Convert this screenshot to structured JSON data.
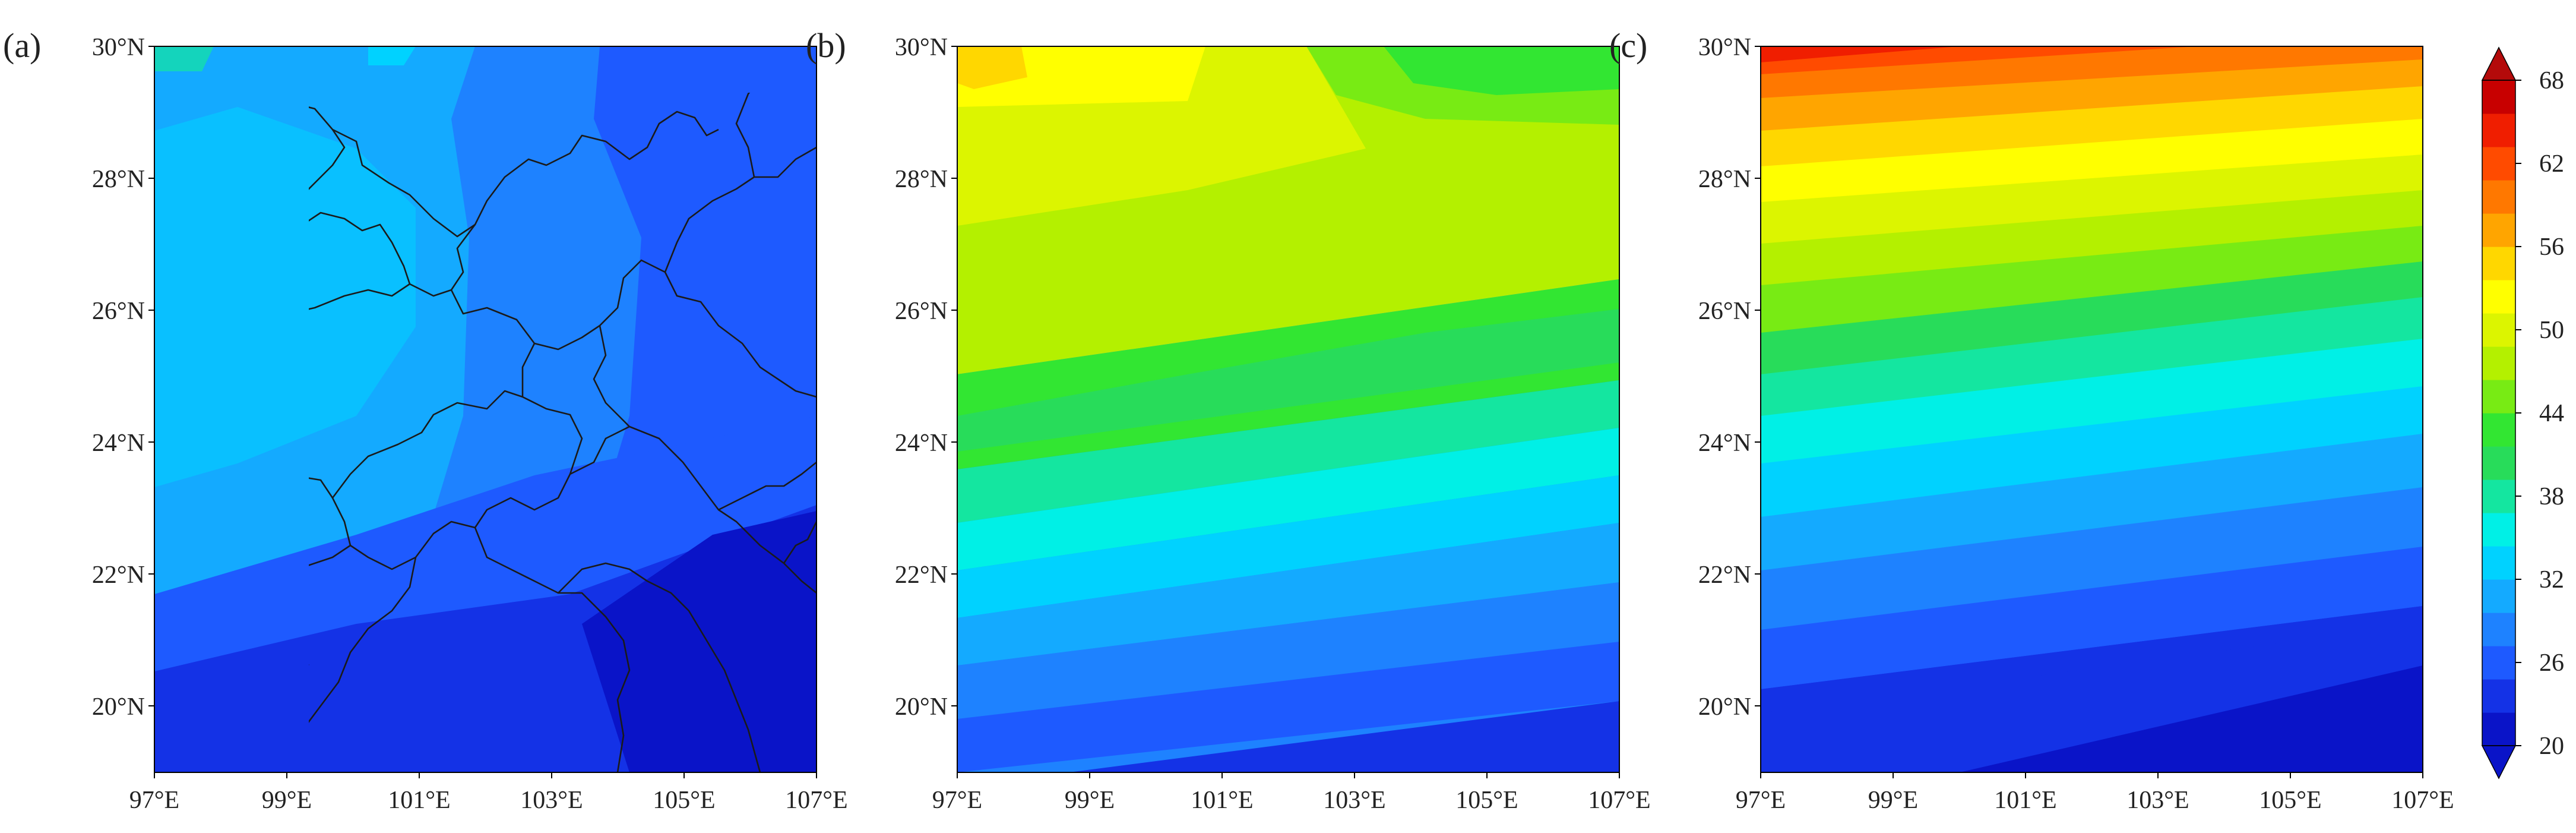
{
  "colorbar": {
    "ticks": [
      "20",
      "26",
      "32",
      "38",
      "44",
      "50",
      "56",
      "62",
      "68"
    ],
    "colors": [
      "#0a14c8",
      "#1432e6",
      "#1e5aff",
      "#1e82ff",
      "#14aaff",
      "#00d2ff",
      "#00f0e6",
      "#14e6a0",
      "#28dc5a",
      "#32e632",
      "#78eb14",
      "#b4f000",
      "#dcf500",
      "#ffff00",
      "#ffd700",
      "#ffa500",
      "#ff7800",
      "#ff4b00",
      "#f01e00",
      "#c80000"
    ],
    "under_color": "#0a14c8",
    "over_color": "#b40a0a"
  },
  "panels": [
    {
      "label": "(a)",
      "lat_labels": [
        "30°N",
        "28°N",
        "26°N",
        "24°N",
        "22°N",
        "20°N"
      ],
      "lon_labels": [
        "97°E",
        "99°E",
        "101°E",
        "103°E",
        "105°E",
        "107°E"
      ]
    },
    {
      "label": "(b)",
      "lat_labels": [
        "30°N",
        "28°N",
        "26°N",
        "24°N",
        "22°N",
        "20°N"
      ],
      "lon_labels": [
        "97°E",
        "99°E",
        "101°E",
        "103°E",
        "105°E",
        "107°E"
      ]
    },
    {
      "label": "(c)",
      "lat_labels": [
        "30°N",
        "28°N",
        "26°N",
        "24°N",
        "22°N",
        "20°N"
      ],
      "lon_labels": [
        "97°E",
        "99°E",
        "101°E",
        "103°E",
        "105°E",
        "107°E"
      ]
    }
  ]
}
